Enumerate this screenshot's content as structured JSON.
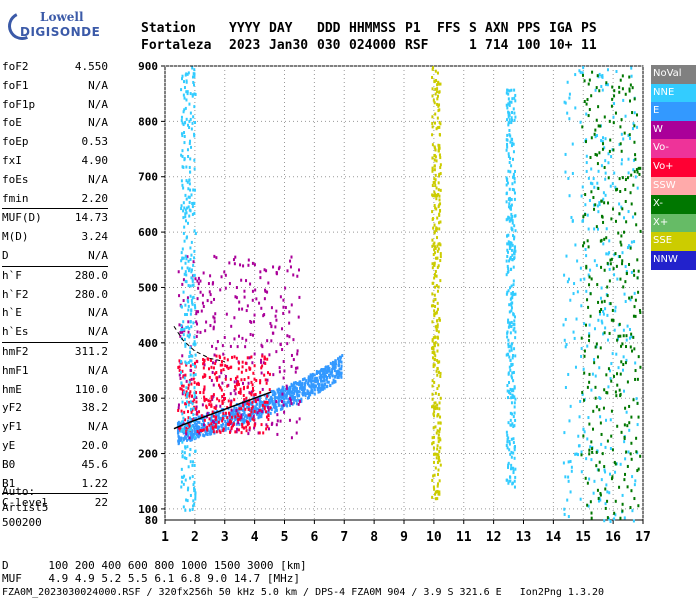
{
  "logo": {
    "line1": "Lowell",
    "line2": "DIGISONDE"
  },
  "header": {
    "labels": [
      "Station",
      "YYYY",
      "DAY",
      "DDD",
      "HHMMSS",
      "P1",
      "FFS",
      "S",
      "AXN",
      "PPS",
      "IGA",
      "PS"
    ],
    "values": [
      "Fortaleza",
      "2023",
      "Jan30",
      "030",
      "024000",
      "RSF",
      "",
      "1",
      "714",
      "100",
      "10+",
      "11"
    ]
  },
  "params_groups": [
    [
      [
        "foF2",
        "4.550"
      ],
      [
        "foF1",
        "N/A"
      ],
      [
        "foF1p",
        "N/A"
      ],
      [
        "foE",
        "N/A"
      ],
      [
        "foEp",
        "0.53"
      ],
      [
        "fxI",
        "4.90"
      ],
      [
        "foEs",
        "N/A"
      ],
      [
        "fmin",
        "2.20"
      ]
    ],
    [
      [
        "MUF(D)",
        "14.73"
      ],
      [
        "M(D)",
        "3.24"
      ],
      [
        "D",
        "N/A"
      ]
    ],
    [
      [
        "h`F",
        "280.0"
      ],
      [
        "h`F2",
        "280.0"
      ],
      [
        "h`E",
        "N/A"
      ],
      [
        "h`Es",
        "N/A"
      ]
    ],
    [
      [
        "hmF2",
        "311.2"
      ],
      [
        "hmF1",
        "N/A"
      ],
      [
        "hmE",
        "110.0"
      ],
      [
        "yF2",
        "38.2"
      ],
      [
        "yF1",
        "N/A"
      ],
      [
        "yE",
        "20.0"
      ],
      [
        "B0",
        "45.6"
      ],
      [
        "B1",
        "1.22"
      ]
    ],
    [
      [
        "C-level",
        "22"
      ]
    ]
  ],
  "autoscale": {
    "line1": "Auto:",
    "line2": "Artist5",
    "line3": "500200"
  },
  "legend": [
    {
      "label": "NoVal",
      "color": "#808080"
    },
    {
      "label": "NNE",
      "color": "#33ccff"
    },
    {
      "label": "E",
      "color": "#3399ff"
    },
    {
      "label": "W",
      "color": "#aa0099"
    },
    {
      "label": "Vo-",
      "color": "#ee3399"
    },
    {
      "label": "Vo+",
      "color": "#ff0033"
    },
    {
      "label": "SSW",
      "color": "#ffaaaa"
    },
    {
      "label": "X-",
      "color": "#007700"
    },
    {
      "label": "X+",
      "color": "#66bb66"
    },
    {
      "label": "SSE",
      "color": "#cccc00"
    },
    {
      "label": "NNW",
      "color": "#2222cc"
    }
  ],
  "muf_table": {
    "d_label": "D",
    "d_values": [
      "100",
      "200",
      "400",
      "600",
      "800",
      "1000",
      "1500",
      "3000"
    ],
    "d_unit": "[km]",
    "muf_label": "MUF",
    "muf_values": [
      "4.9",
      "4.9",
      "5.2",
      "5.5",
      "6.1",
      "6.8",
      "9.0",
      "14.7"
    ],
    "muf_unit": "[MHz]"
  },
  "footer": "FZA0M_2023030024000.RSF / 320fx256h 50 kHz 5.0 km / DPS-4 FZA0M 904 / 3.9 S 321.6 E   Ion2Png 1.3.20",
  "chart_data": {
    "type": "scatter",
    "xlabel": "",
    "ylabel": "",
    "xlim": [
      1,
      17
    ],
    "ylim": [
      80,
      900
    ],
    "x_ticks": [
      1,
      2,
      3,
      4,
      5,
      6,
      7,
      8,
      9,
      10,
      11,
      12,
      13,
      14,
      15,
      16,
      17
    ],
    "y_ticks": [
      100,
      200,
      300,
      400,
      500,
      600,
      700,
      800,
      900
    ],
    "y_bottom_label": "80",
    "grid": true,
    "legend_position": "right",
    "trace_line": {
      "x": [
        1.3,
        1.6,
        2.0,
        2.5,
        3.0,
        3.5,
        4.0,
        4.55
      ],
      "y": [
        245,
        252,
        260,
        270,
        280,
        290,
        300,
        311
      ]
    },
    "dashed_profile": {
      "x": [
        1.3,
        1.6,
        2.0,
        2.5,
        3.0
      ],
      "y": [
        430,
        405,
        385,
        372,
        366
      ]
    },
    "echo_clusters": [
      {
        "mode": "E",
        "x_range": [
          1.4,
          6.9
        ],
        "y_at_x": [
          [
            1.4,
            240
          ],
          [
            3.0,
            265
          ],
          [
            4.5,
            295
          ],
          [
            5.5,
            315
          ],
          [
            6.5,
            345
          ],
          [
            6.9,
            360
          ]
        ]
      },
      {
        "mode": "W",
        "x_range": [
          1.4,
          5.5
        ],
        "y_range": [
          230,
          560
        ]
      },
      {
        "mode": "Vo+",
        "x_range": [
          1.4,
          4.5
        ],
        "y_range": [
          240,
          380
        ]
      },
      {
        "mode": "NNE",
        "x_range": [
          1.5,
          2.0
        ],
        "y_range": [
          100,
          900
        ]
      },
      {
        "mode": "NNE",
        "x_range": [
          12.4,
          12.7
        ],
        "y_range": [
          140,
          860
        ]
      },
      {
        "mode": "NNE",
        "x_range": [
          14.3,
          16.8
        ],
        "y_range": [
          80,
          900
        ]
      },
      {
        "mode": "X-",
        "x_range": [
          14.9,
          16.9
        ],
        "y_range": [
          80,
          900
        ]
      },
      {
        "mode": "SSE",
        "x_range": [
          9.9,
          10.2
        ],
        "y_range": [
          120,
          900
        ]
      }
    ]
  }
}
